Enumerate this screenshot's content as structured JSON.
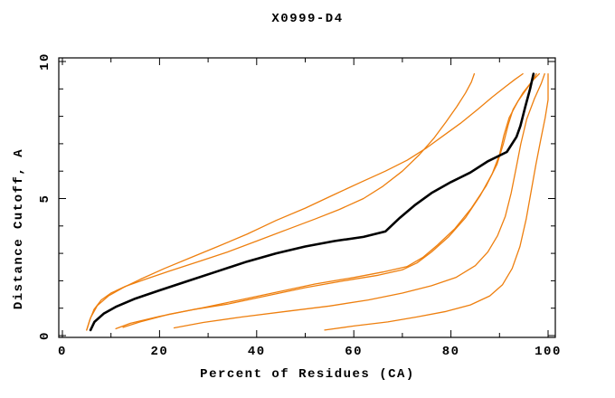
{
  "window": {
    "background": "#ffffff"
  },
  "chart_data": {
    "type": "line",
    "title": "X0999-D4",
    "xlabel": "Percent of Residues (CA)",
    "ylabel": "Distance Cutoff, A",
    "xlim": [
      0,
      100
    ],
    "ylim": [
      0,
      10
    ],
    "grid": false,
    "legend": "none",
    "xticks": {
      "major": [
        0,
        20,
        40,
        60,
        80,
        100
      ],
      "minor": [
        10,
        30,
        50,
        70,
        90
      ]
    },
    "yticks": {
      "major": [
        0,
        5,
        10
      ],
      "minor": [
        1,
        2,
        3,
        4,
        6,
        7,
        8,
        9
      ]
    },
    "colors": {
      "model": "#ee7f0e",
      "highlight": "#000000",
      "axis": "#000000"
    },
    "series": [
      {
        "name": "model-1",
        "color": "model",
        "width": 1.3,
        "points": [
          [
            5,
            0.2
          ],
          [
            5.6,
            0.55
          ],
          [
            6.5,
            0.95
          ],
          [
            8,
            1.3
          ],
          [
            10,
            1.55
          ],
          [
            13,
            1.8
          ],
          [
            17,
            2.05
          ],
          [
            22,
            2.35
          ],
          [
            28,
            2.7
          ],
          [
            34,
            3.05
          ],
          [
            40,
            3.45
          ],
          [
            46,
            3.85
          ],
          [
            52,
            4.25
          ],
          [
            57,
            4.6
          ],
          [
            62,
            5.0
          ],
          [
            66,
            5.45
          ],
          [
            70,
            6.0
          ],
          [
            73.5,
            6.6
          ],
          [
            76.5,
            7.2
          ],
          [
            79,
            7.8
          ],
          [
            81.2,
            8.35
          ],
          [
            83,
            8.85
          ],
          [
            84.2,
            9.25
          ],
          [
            84.8,
            9.55
          ]
        ]
      },
      {
        "name": "model-2",
        "color": "model",
        "width": 1.3,
        "points": [
          [
            5,
            0.2
          ],
          [
            5.8,
            0.65
          ],
          [
            7.2,
            1.1
          ],
          [
            9.5,
            1.45
          ],
          [
            12.5,
            1.75
          ],
          [
            16,
            2.05
          ],
          [
            21,
            2.45
          ],
          [
            26.5,
            2.85
          ],
          [
            32,
            3.25
          ],
          [
            38,
            3.7
          ],
          [
            44,
            4.2
          ],
          [
            50,
            4.65
          ],
          [
            56,
            5.15
          ],
          [
            61.5,
            5.6
          ],
          [
            66.5,
            6.0
          ],
          [
            71,
            6.4
          ],
          [
            75,
            6.85
          ],
          [
            78.5,
            7.3
          ],
          [
            82,
            7.75
          ],
          [
            85.5,
            8.25
          ],
          [
            88.5,
            8.7
          ],
          [
            91,
            9.05
          ],
          [
            93.2,
            9.35
          ],
          [
            94.8,
            9.55
          ]
        ]
      },
      {
        "name": "model-3",
        "color": "model",
        "width": 1.3,
        "points": [
          [
            11,
            0.25
          ],
          [
            14,
            0.45
          ],
          [
            20,
            0.7
          ],
          [
            27,
            0.95
          ],
          [
            34,
            1.15
          ],
          [
            42,
            1.45
          ],
          [
            50,
            1.75
          ],
          [
            58,
            2.0
          ],
          [
            65,
            2.2
          ],
          [
            70,
            2.4
          ],
          [
            73,
            2.65
          ],
          [
            76,
            3.05
          ],
          [
            79.5,
            3.6
          ],
          [
            83,
            4.3
          ],
          [
            86,
            5.1
          ],
          [
            88.5,
            5.9
          ],
          [
            90,
            6.6
          ],
          [
            90.9,
            7.3
          ],
          [
            92,
            7.95
          ],
          [
            93.8,
            8.55
          ],
          [
            95.8,
            9.05
          ],
          [
            97,
            9.35
          ],
          [
            97.6,
            9.55
          ]
        ]
      },
      {
        "name": "model-4",
        "color": "model",
        "width": 1.3,
        "points": [
          [
            12.5,
            0.3
          ],
          [
            16,
            0.5
          ],
          [
            22,
            0.78
          ],
          [
            29,
            1.02
          ],
          [
            36,
            1.28
          ],
          [
            44,
            1.58
          ],
          [
            52,
            1.88
          ],
          [
            60,
            2.12
          ],
          [
            66,
            2.32
          ],
          [
            71,
            2.52
          ],
          [
            74.2,
            2.85
          ],
          [
            77.2,
            3.3
          ],
          [
            80.8,
            3.9
          ],
          [
            84.2,
            4.65
          ],
          [
            87.2,
            5.45
          ],
          [
            89.5,
            6.25
          ],
          [
            90.8,
            7.0
          ],
          [
            91.8,
            7.7
          ],
          [
            92.8,
            8.25
          ],
          [
            94.8,
            8.85
          ],
          [
            96.8,
            9.3
          ],
          [
            98.2,
            9.55
          ]
        ]
      },
      {
        "name": "model-5",
        "color": "model",
        "width": 1.3,
        "points": [
          [
            23,
            0.28
          ],
          [
            29,
            0.48
          ],
          [
            37,
            0.68
          ],
          [
            46,
            0.88
          ],
          [
            55,
            1.08
          ],
          [
            63,
            1.3
          ],
          [
            70,
            1.55
          ],
          [
            76,
            1.82
          ],
          [
            81,
            2.12
          ],
          [
            85,
            2.55
          ],
          [
            87.6,
            3.05
          ],
          [
            89.6,
            3.65
          ],
          [
            91.2,
            4.35
          ],
          [
            92.4,
            5.2
          ],
          [
            93.4,
            6.1
          ],
          [
            94.4,
            7.0
          ],
          [
            95.6,
            7.9
          ],
          [
            97.2,
            8.65
          ],
          [
            98.6,
            9.2
          ],
          [
            99.3,
            9.55
          ]
        ]
      },
      {
        "name": "model-6",
        "color": "model",
        "width": 1.3,
        "points": [
          [
            54,
            0.2
          ],
          [
            60,
            0.35
          ],
          [
            67,
            0.5
          ],
          [
            73,
            0.68
          ],
          [
            79,
            0.88
          ],
          [
            84,
            1.12
          ],
          [
            88,
            1.45
          ],
          [
            90.6,
            1.85
          ],
          [
            92.6,
            2.45
          ],
          [
            94.2,
            3.25
          ],
          [
            95.5,
            4.25
          ],
          [
            96.5,
            5.25
          ],
          [
            97.5,
            6.25
          ],
          [
            98.5,
            7.15
          ],
          [
            99.4,
            7.95
          ],
          [
            100,
            8.6
          ],
          [
            100,
            9.55
          ]
        ]
      },
      {
        "name": "highlighted-model",
        "color": "highlight",
        "width": 2.6,
        "points": [
          [
            5.8,
            0.2
          ],
          [
            6.6,
            0.5
          ],
          [
            8.5,
            0.8
          ],
          [
            11,
            1.05
          ],
          [
            15,
            1.35
          ],
          [
            20,
            1.65
          ],
          [
            26,
            2.0
          ],
          [
            32,
            2.35
          ],
          [
            38,
            2.7
          ],
          [
            44,
            3.0
          ],
          [
            50,
            3.25
          ],
          [
            56,
            3.45
          ],
          [
            62,
            3.6
          ],
          [
            66.5,
            3.8
          ],
          [
            69.5,
            4.3
          ],
          [
            72.5,
            4.75
          ],
          [
            76,
            5.2
          ],
          [
            80,
            5.6
          ],
          [
            84,
            5.95
          ],
          [
            87.5,
            6.35
          ],
          [
            91.5,
            6.7
          ],
          [
            93.5,
            7.25
          ],
          [
            94.3,
            7.65
          ],
          [
            95.3,
            8.35
          ],
          [
            96.3,
            9.0
          ],
          [
            97,
            9.55
          ]
        ]
      }
    ]
  }
}
